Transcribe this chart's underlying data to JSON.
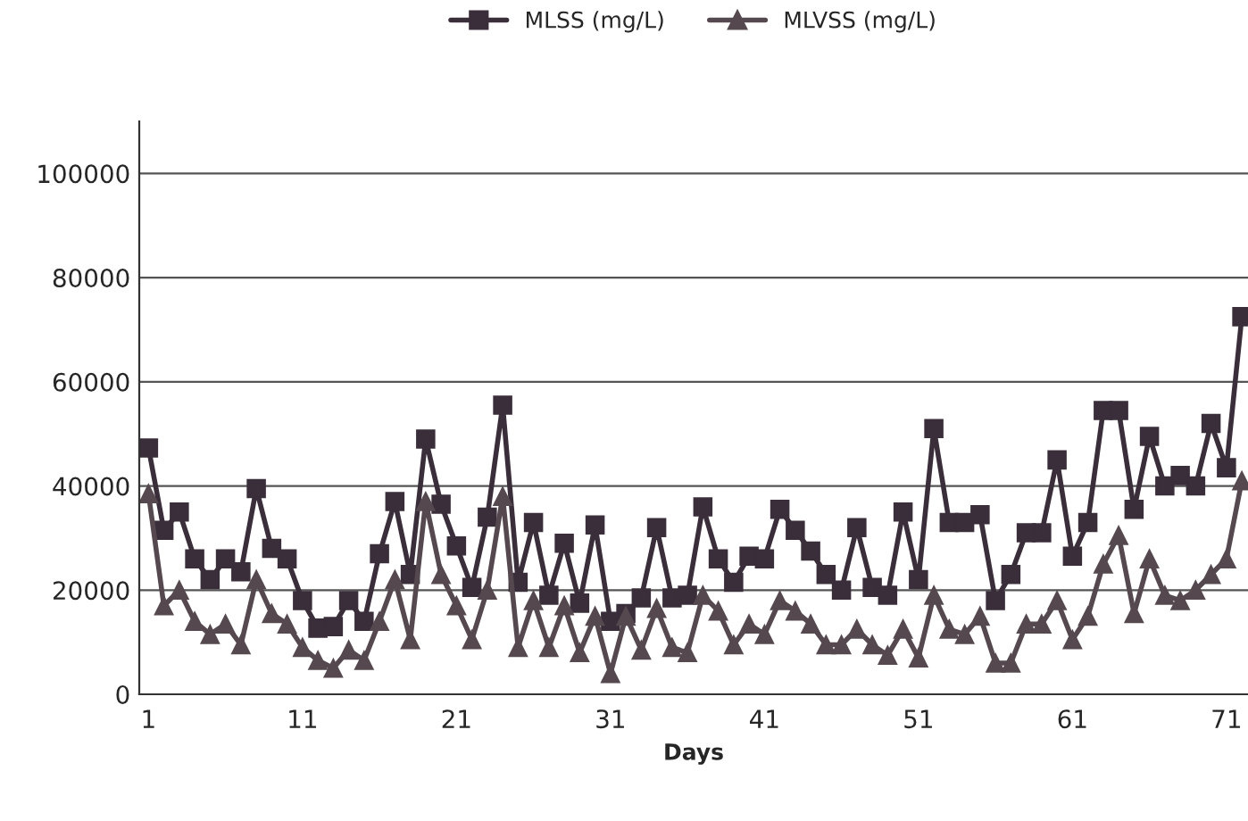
{
  "chart_data": {
    "type": "line",
    "xlabel": "Days",
    "categories": [
      "1",
      null,
      null,
      null,
      null,
      null,
      null,
      null,
      null,
      null,
      "11",
      null,
      null,
      null,
      null,
      null,
      null,
      null,
      null,
      null,
      "21",
      null,
      null,
      null,
      null,
      null,
      null,
      null,
      null,
      null,
      "31",
      null,
      null,
      null,
      null,
      null,
      null,
      null,
      null,
      null,
      "41",
      null,
      null,
      null,
      null,
      null,
      null,
      null,
      null,
      null,
      "51",
      null,
      null,
      null,
      null,
      null,
      null,
      null,
      null,
      null,
      "61",
      null,
      null,
      null,
      null,
      null,
      null,
      null,
      null,
      null,
      "71",
      null
    ],
    "series": [
      {
        "name": "MLSS (mg/L)",
        "color": "#3a2e3a",
        "marker": "square",
        "values": [
          47300,
          31500,
          35000,
          26000,
          22000,
          26000,
          23500,
          39500,
          28000,
          26000,
          18000,
          12700,
          13000,
          18000,
          14000,
          27000,
          37000,
          23000,
          49000,
          36500,
          28500,
          20500,
          34000,
          55500,
          21500,
          33000,
          19000,
          29000,
          17500,
          32500,
          14000,
          15500,
          18500,
          32000,
          18500,
          19000,
          36000,
          26000,
          21500,
          26500,
          26000,
          35500,
          31500,
          27500,
          23000,
          20000,
          32000,
          20500,
          19000,
          35000,
          22000,
          51000,
          33000,
          33000,
          34500,
          18000,
          23000,
          31000,
          31000,
          45000,
          26500,
          33000,
          54500,
          54500,
          35500,
          49500,
          40000,
          42000,
          40000,
          52000,
          43500,
          72500
        ]
      },
      {
        "name": "MLVSS (mg/L)",
        "color": "#55494f",
        "marker": "triangle",
        "values": [
          38500,
          17000,
          20000,
          14000,
          11500,
          13500,
          9500,
          22000,
          15500,
          13500,
          9000,
          6500,
          5000,
          8500,
          6500,
          14000,
          22000,
          10500,
          37000,
          23000,
          17000,
          10500,
          20000,
          38000,
          9000,
          18000,
          9000,
          17000,
          8000,
          15000,
          4000,
          15000,
          8500,
          16500,
          9000,
          8000,
          19000,
          16000,
          9500,
          13500,
          11500,
          18000,
          16000,
          13500,
          9500,
          9500,
          12500,
          9500,
          7500,
          12500,
          7000,
          19000,
          12500,
          11500,
          15000,
          6000,
          6000,
          13500,
          13500,
          18000,
          10500,
          15000,
          25000,
          30500,
          15500,
          26000,
          19000,
          18000,
          20000,
          23000,
          26000,
          41000
        ]
      }
    ],
    "ylim": [
      0,
      110000
    ],
    "yticks": [
      0,
      20000,
      40000,
      60000,
      80000,
      100000
    ],
    "grid": "y",
    "legend": "top",
    "line_style": "solid"
  }
}
